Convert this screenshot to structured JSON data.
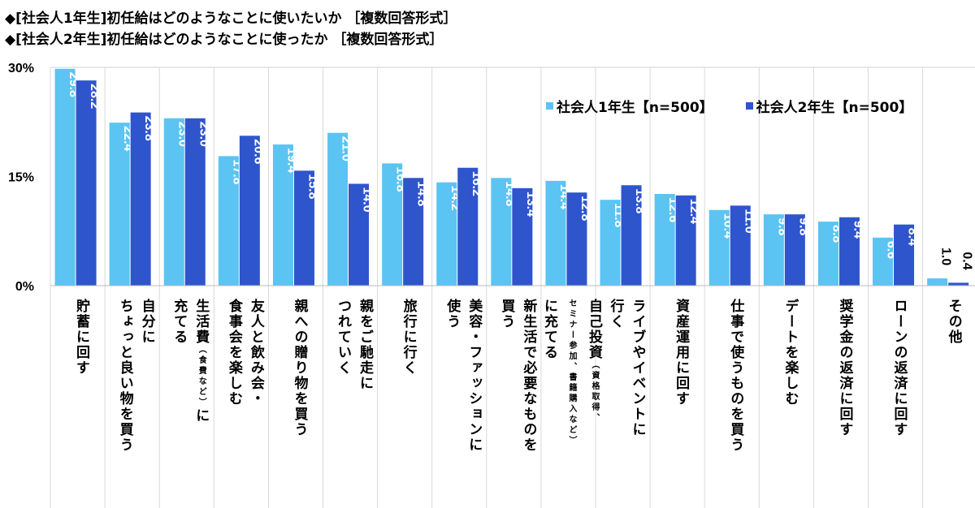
{
  "titles": [
    "◆[社会人1年生]初任給はどのようなことに使いたいか ［複数回答形式］",
    "◆[社会人2年生]初任給はどのようなことに使ったか ［複数回答形式］"
  ],
  "chart_data": {
    "type": "bar",
    "ylim": [
      0,
      30
    ],
    "yticks": [
      "0%",
      "15%",
      "30%"
    ],
    "grid": "vertical separators",
    "legend": "top-right",
    "categories": [
      [
        [
          "貯蓄に回す"
        ]
      ],
      [
        [
          "自分に"
        ],
        [
          "ちょっと良い物を買う"
        ]
      ],
      [
        [
          "生活費",
          {
            "small": "（食費など）"
          },
          "に"
        ],
        [
          "充てる"
        ]
      ],
      [
        [
          "友人と飲み会・"
        ],
        [
          "食事会を楽しむ"
        ]
      ],
      [
        [
          "親への贈り物を買う"
        ]
      ],
      [
        [
          "親をご馳走に"
        ],
        [
          "つれていく"
        ]
      ],
      [
        [
          "旅行に行く"
        ]
      ],
      [
        [
          "美容・ファッションに"
        ],
        [
          "使う"
        ]
      ],
      [
        [
          "新生活で必要なものを"
        ],
        [
          "買う"
        ]
      ],
      [
        [
          "自己投資",
          {
            "small": "（資格取得、"
          }
        ],
        [
          {
            "small": "セミナー参加、書籍購入など）"
          }
        ],
        [
          "に充てる"
        ]
      ],
      [
        [
          "ライブやイベントに"
        ],
        [
          "行く"
        ]
      ],
      [
        [
          "資産運用に回す"
        ]
      ],
      [
        [
          "仕事で使うものを買う"
        ]
      ],
      [
        [
          "デートを楽しむ"
        ]
      ],
      [
        [
          "奨学金の返済に回す"
        ]
      ],
      [
        [
          "ローンの返済に回す"
        ]
      ],
      [
        [
          "その他"
        ]
      ]
    ],
    "series": [
      {
        "name": "社会人1年生【n=500】",
        "color": "#5bc4f2",
        "values": [
          29.8,
          22.4,
          23.0,
          17.8,
          19.4,
          21.0,
          16.8,
          14.2,
          14.8,
          14.4,
          11.8,
          12.6,
          10.4,
          9.8,
          8.8,
          6.6,
          1.0
        ]
      },
      {
        "name": "社会人2年生【n=500】",
        "color": "#2f55cc",
        "values": [
          28.2,
          23.8,
          23.0,
          20.6,
          15.8,
          14.0,
          14.8,
          16.2,
          13.4,
          12.8,
          13.8,
          12.4,
          11.0,
          9.8,
          9.4,
          8.4,
          0.4
        ]
      }
    ]
  }
}
